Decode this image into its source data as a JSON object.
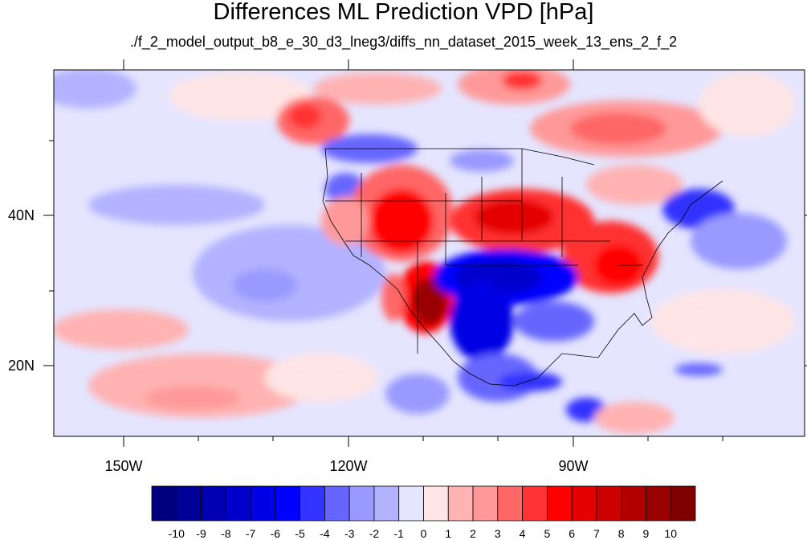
{
  "title": "Differences ML Prediction VPD [hPa]",
  "subtitle": "./f_2_model_output_b8_e_30_d3_lneg3/diffs_nn_dataset_2015_week_13_ens_2_f_2",
  "lat_labels": [
    "40N",
    "20N"
  ],
  "lon_labels": [
    "150W",
    "120W",
    "90W"
  ],
  "colorbar": {
    "tick_labels": [
      "-10",
      "-9",
      "-8",
      "-7",
      "-6",
      "-5",
      "-4",
      "-3",
      "-2",
      "-1",
      "0",
      "1",
      "2",
      "3",
      "4",
      "5",
      "6",
      "7",
      "8",
      "9",
      "10"
    ],
    "colors": [
      "#00007f",
      "#000099",
      "#0000b2",
      "#0000cc",
      "#0000e5",
      "#0000ff",
      "#3333ff",
      "#6666ff",
      "#9999ff",
      "#b2b2ff",
      "#e5e5ff",
      "#ffe5e5",
      "#ffb2b2",
      "#ff9999",
      "#ff6666",
      "#ff3333",
      "#ff0000",
      "#e50000",
      "#cc0000",
      "#b20000",
      "#990000",
      "#7f0000"
    ]
  },
  "map": {
    "extent": {
      "lon_min": -160,
      "lon_max": -60,
      "lat_min": 10,
      "lat_max": 60
    },
    "projection": "cylindrical equidistant",
    "background_value_color": "#e5e5ff"
  }
}
